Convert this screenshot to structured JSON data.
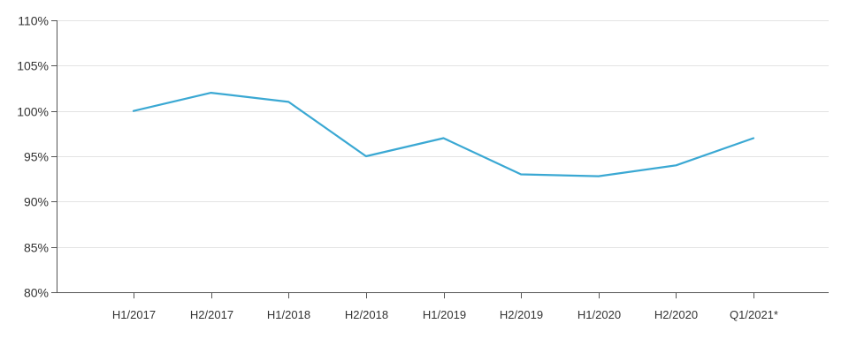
{
  "chart_data": {
    "type": "line",
    "title": "",
    "xlabel": "",
    "ylabel": "",
    "categories": [
      "H1/2017",
      "H2/2017",
      "H1/2018",
      "H2/2018",
      "H1/2019",
      "H2/2019",
      "H1/2020",
      "H2/2020",
      "Q1/2021*"
    ],
    "series": [
      {
        "values": [
          100,
          102,
          101,
          95,
          97,
          93,
          92.8,
          94,
          97
        ],
        "color": "#3aa8d3"
      }
    ],
    "ylim": [
      80,
      110
    ],
    "yticks": [
      80,
      85,
      90,
      95,
      100,
      105,
      110
    ],
    "ytick_format": "%",
    "grid": true,
    "legend": "none"
  }
}
